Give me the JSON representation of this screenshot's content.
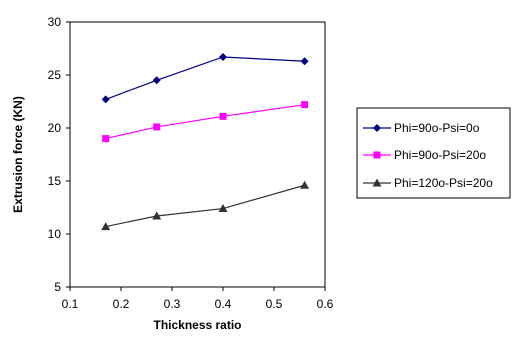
{
  "chart_data": {
    "type": "line",
    "xlabel": "Thickness ratio",
    "ylabel": "Extrusion force (KN)",
    "xlim": [
      0.1,
      0.6
    ],
    "ylim": [
      5,
      30
    ],
    "xticks": [
      0.1,
      0.2,
      0.3,
      0.4,
      0.5,
      0.6
    ],
    "yticks": [
      5,
      10,
      15,
      20,
      25,
      30
    ],
    "x_tick_labels": [
      "0.1",
      "0.2",
      "0.3",
      "0.4",
      "0.5",
      "0.6"
    ],
    "y_tick_labels": [
      "5",
      "10",
      "15",
      "20",
      "25",
      "30"
    ],
    "grid": false,
    "legend_position": "right",
    "series": [
      {
        "name": "Phi=90o-Psi=0o",
        "color": "#000080",
        "marker": "diamond",
        "x": [
          0.17,
          0.27,
          0.4,
          0.56
        ],
        "y": [
          22.7,
          24.5,
          26.7,
          26.3
        ]
      },
      {
        "name": "Phi=90o-Psi=20o",
        "color": "#FF00FF",
        "marker": "square",
        "x": [
          0.17,
          0.27,
          0.4,
          0.56
        ],
        "y": [
          19.0,
          20.1,
          21.1,
          22.2
        ]
      },
      {
        "name": "Phi=120o-Psi=20o",
        "color": "#333333",
        "marker": "triangle",
        "x": [
          0.17,
          0.27,
          0.4,
          0.56
        ],
        "y": [
          10.7,
          11.7,
          12.4,
          14.6
        ]
      }
    ]
  }
}
